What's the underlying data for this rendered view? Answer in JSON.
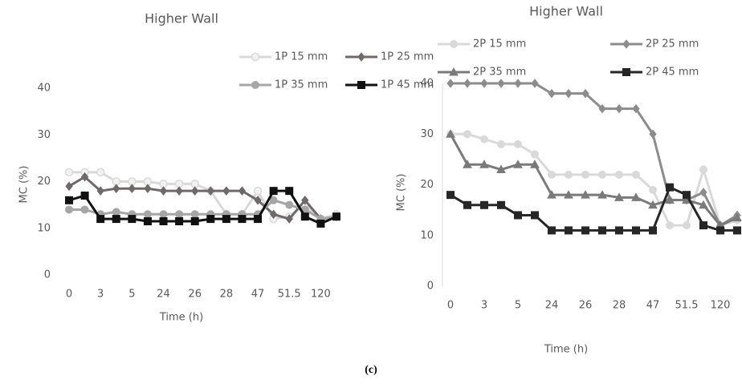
{
  "chart_data": [
    {
      "type": "line",
      "title": "Higher Wall",
      "x_label": "Time (h)",
      "y_label": "MC (%)",
      "categories": [
        "0",
        null,
        "3",
        null,
        "5",
        null,
        "24",
        null,
        "26",
        null,
        "28",
        null,
        "47",
        null,
        "51.5",
        null,
        "120",
        null
      ],
      "ylim": [
        0,
        40
      ],
      "yticks": [
        0,
        10,
        20,
        30,
        40
      ],
      "grid": false,
      "series": [
        {
          "name": "1P 15 mm",
          "color": "#d9d9d9",
          "marker": "circle-open",
          "values": [
            22,
            22,
            22,
            20,
            20,
            20,
            19.5,
            19.5,
            19.5,
            18,
            13,
            13,
            18,
            12,
            12.5,
            15,
            12,
            13
          ]
        },
        {
          "name": "1P 25 mm",
          "color": "#6f6a6a",
          "marker": "diamond",
          "values": [
            19,
            21,
            18,
            18.5,
            18.5,
            18.5,
            18,
            18,
            18,
            18,
            18,
            18,
            16,
            13,
            12,
            16,
            12,
            12.5
          ]
        },
        {
          "name": "1P 35 mm",
          "color": "#a6a6a6",
          "marker": "circle",
          "values": [
            14,
            14,
            13,
            13.5,
            13,
            13,
            13,
            13,
            13,
            13,
            13,
            13,
            13,
            16,
            15,
            14,
            12,
            12.5
          ]
        },
        {
          "name": "1P 45 mm",
          "color": "#111111",
          "marker": "square",
          "values": [
            16,
            17,
            12,
            12,
            12,
            11.5,
            11.5,
            11.5,
            11.5,
            12,
            12,
            12,
            12,
            18,
            18,
            12.5,
            11,
            12.5
          ]
        }
      ]
    },
    {
      "type": "line",
      "title": "Higher Wall",
      "x_label": "Time (h)",
      "y_label": "MC (%)",
      "categories": [
        "0",
        null,
        "3",
        null,
        "5",
        null,
        "24",
        null,
        "26",
        null,
        "28",
        null,
        "47",
        null,
        "51.5",
        null,
        "120",
        null
      ],
      "ylim": [
        0,
        40
      ],
      "yticks": [
        0,
        10,
        20,
        30,
        40
      ],
      "grid": false,
      "series": [
        {
          "name": "2P 15 mm",
          "color": "#d9d9d9",
          "marker": "circle",
          "values": [
            30,
            30,
            29,
            28,
            28,
            26,
            22,
            22,
            22,
            22,
            22,
            22,
            19,
            12,
            12,
            23,
            12,
            13
          ]
        },
        {
          "name": "2P 25 mm",
          "color": "#8c8c8c",
          "marker": "diamond",
          "values": [
            40,
            40,
            40,
            40,
            40,
            40,
            38,
            38,
            38,
            35,
            35,
            35,
            30,
            17,
            17,
            18.5,
            12,
            14
          ]
        },
        {
          "name": "2P 35 mm",
          "color": "#7a7a7a",
          "marker": "triangle",
          "values": [
            30,
            24,
            24,
            23,
            24,
            24,
            18,
            18,
            18,
            18,
            17.5,
            17.5,
            16,
            17,
            17,
            16,
            12,
            13.5
          ]
        },
        {
          "name": "2P 45 mm",
          "color": "#262626",
          "marker": "square",
          "values": [
            18,
            16,
            16,
            16,
            14,
            14,
            11,
            11,
            11,
            11,
            11,
            11,
            11,
            19.5,
            18,
            12,
            11,
            11
          ]
        }
      ]
    }
  ],
  "caption": "(c)"
}
